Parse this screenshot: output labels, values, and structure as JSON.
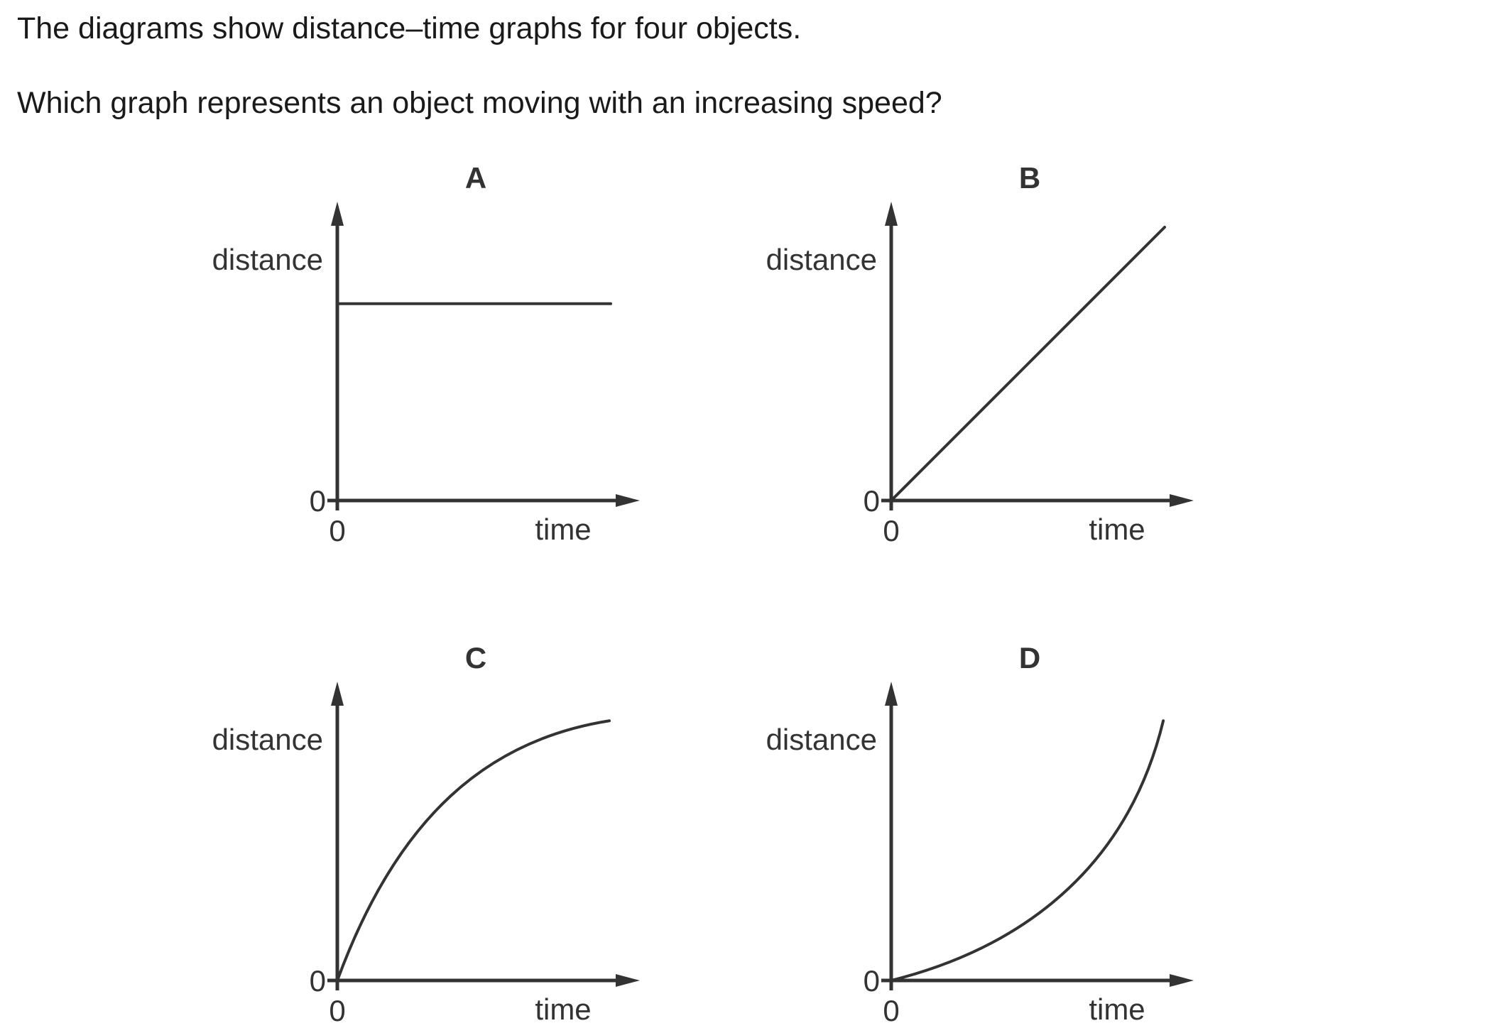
{
  "question": {
    "line1": "The diagrams show distance–time graphs for four objects.",
    "line2": "Which graph represents an object moving with an increasing speed?"
  },
  "chart_data": [
    {
      "type": "line",
      "title": "A",
      "xlabel": "time",
      "ylabel": "distance",
      "x_origin_label": "0",
      "y_origin_label": "0",
      "x": [
        0,
        0.5,
        1
      ],
      "y": [
        0.72,
        0.72,
        0.72
      ],
      "shape": "horizontal"
    },
    {
      "type": "line",
      "title": "B",
      "xlabel": "time",
      "ylabel": "distance",
      "x_origin_label": "0",
      "y_origin_label": "0",
      "x": [
        0,
        0.5,
        1
      ],
      "y": [
        0,
        0.5,
        1
      ],
      "shape": "straight-increasing"
    },
    {
      "type": "line",
      "title": "C",
      "xlabel": "time",
      "ylabel": "distance",
      "x_origin_label": "0",
      "y_origin_label": "0",
      "x": [
        0,
        0.25,
        0.5,
        0.75,
        1
      ],
      "y": [
        0,
        0.45,
        0.72,
        0.88,
        0.95
      ],
      "shape": "concave-down"
    },
    {
      "type": "line",
      "title": "D",
      "xlabel": "time",
      "ylabel": "distance",
      "x_origin_label": "0",
      "y_origin_label": "0",
      "x": [
        0,
        0.25,
        0.5,
        0.75,
        1
      ],
      "y": [
        0,
        0.12,
        0.32,
        0.58,
        1
      ],
      "shape": "concave-up"
    }
  ]
}
